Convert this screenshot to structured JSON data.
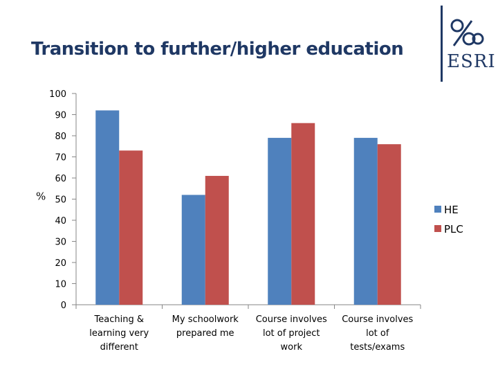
{
  "slide": {
    "title": "Transition to further/higher education",
    "logo_text": "ESRI"
  },
  "colors": {
    "title": "#1f3864",
    "HE": "#4f81bd",
    "PLC": "#c0504d",
    "axis": "#868686"
  },
  "chart_data": {
    "type": "bar",
    "title": "",
    "xlabel": "",
    "ylabel": "%",
    "ylim": [
      0,
      100
    ],
    "yticks": [
      0,
      10,
      20,
      30,
      40,
      50,
      60,
      70,
      80,
      90,
      100
    ],
    "grid": false,
    "legend_position": "right",
    "categories": [
      [
        "Teaching &",
        "learning very",
        "different"
      ],
      [
        "My schoolwork",
        "prepared me"
      ],
      [
        "Course involves",
        "lot of project",
        "work"
      ],
      [
        "Course involves",
        "lot of",
        "tests/exams"
      ]
    ],
    "series": [
      {
        "name": "HE",
        "color": "#4f81bd",
        "values": [
          92,
          52,
          79,
          79
        ]
      },
      {
        "name": "PLC",
        "color": "#c0504d",
        "values": [
          73,
          61,
          86,
          76
        ]
      }
    ]
  }
}
